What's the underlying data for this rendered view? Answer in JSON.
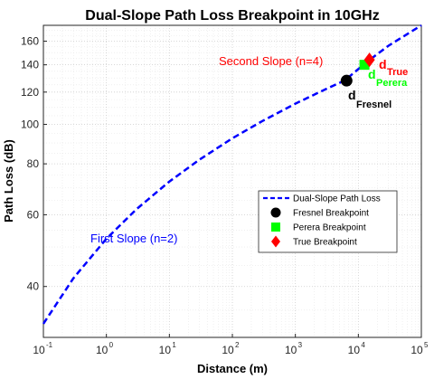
{
  "chart_data": {
    "type": "line",
    "title": "Dual-Slope Path Loss Breakpoint in 10GHz",
    "xlabel": "Distance (m)",
    "ylabel": "Path Loss (dB)",
    "xscale": "log",
    "yscale": "log",
    "xlim": [
      0.1,
      100000
    ],
    "ylim": [
      30,
      175
    ],
    "grid": true,
    "legend_position": "lower-right",
    "x_ticks": [
      {
        "base": "10",
        "exp": "-1",
        "value": 0.1
      },
      {
        "base": "10",
        "exp": "0",
        "value": 1
      },
      {
        "base": "10",
        "exp": "1",
        "value": 10
      },
      {
        "base": "10",
        "exp": "2",
        "value": 100
      },
      {
        "base": "10",
        "exp": "3",
        "value": 1000
      },
      {
        "base": "10",
        "exp": "4",
        "value": 10000
      },
      {
        "base": "10",
        "exp": "5",
        "value": 100000
      }
    ],
    "y_ticks": [
      {
        "label": "40",
        "value": 40
      },
      {
        "label": "60",
        "value": 60
      },
      {
        "label": "80",
        "value": 80
      },
      {
        "label": "100",
        "value": 100
      },
      {
        "label": "120",
        "value": 120
      },
      {
        "label": "140",
        "value": 140
      },
      {
        "label": "160",
        "value": 160
      }
    ],
    "series": [
      {
        "name": "Dual-Slope Path Loss",
        "style": "dashed",
        "color": "#0000ff",
        "x": [
          0.1,
          0.3,
          1,
          3,
          10,
          30,
          100,
          300,
          1000,
          3000,
          6000,
          14000,
          30000,
          100000
        ],
        "y": [
          32.4,
          41.9,
          52.4,
          61.9,
          72.4,
          81.9,
          92.4,
          101.9,
          112.4,
          121.9,
          128.0,
          142.7,
          155.9,
          176.9
        ]
      }
    ],
    "markers": [
      {
        "name": "Fresnel Breakpoint",
        "shape": "circle",
        "color": "#000000",
        "x": 6500,
        "y": 128
      },
      {
        "name": "Perera Breakpoint",
        "shape": "square",
        "color": "#00ff00",
        "x": 12500,
        "y": 140
      },
      {
        "name": "True Breakpoint",
        "shape": "diamond",
        "color": "#ff0000",
        "x": 15000,
        "y": 144
      }
    ],
    "annotations": {
      "second_slope": {
        "text": "Second Slope (n=4)",
        "color": "#ff0000"
      },
      "first_slope": {
        "text": "First Slope (n=2)",
        "color": "#0000ff"
      },
      "d_fresnel": {
        "main": "d",
        "sub": "Fresnel",
        "color": "#000000"
      },
      "d_perera": {
        "main": "d",
        "sub": "Perera",
        "color": "#00ff00"
      },
      "d_true": {
        "main": "d",
        "sub": "True",
        "color": "#ff0000"
      }
    }
  }
}
